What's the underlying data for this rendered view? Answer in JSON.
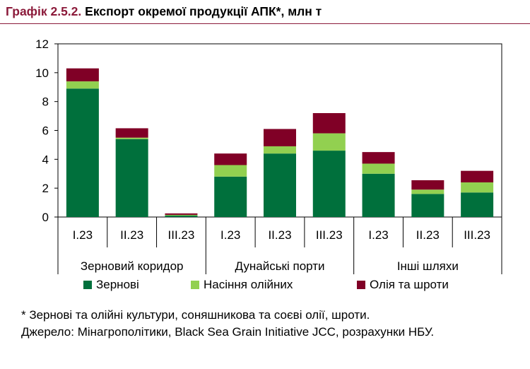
{
  "header": {
    "prefix": "Графік 2.5.2.",
    "title": "Експорт окремої продукції АПК*, млн т"
  },
  "colors": {
    "grain": "#00703c",
    "oilseeds": "#92d050",
    "oil_meal": "#800026",
    "accent": "#8b1a3a"
  },
  "chart_data": {
    "type": "bar",
    "stacked": true,
    "categories": [
      "I.23",
      "II.23",
      "III.23",
      "I.23",
      "II.23",
      "III.23",
      "I.23",
      "II.23",
      "III.23"
    ],
    "groups": [
      {
        "label": "Зерновий коридор",
        "start": 0,
        "count": 3
      },
      {
        "label": "Дунайські порти",
        "start": 3,
        "count": 3
      },
      {
        "label": "Інші шляхи",
        "start": 6,
        "count": 3
      }
    ],
    "series": [
      {
        "name": "Зернові",
        "color": "#00703c",
        "values": [
          8.9,
          5.4,
          0.1,
          2.8,
          4.4,
          4.6,
          3.0,
          1.6,
          1.7
        ]
      },
      {
        "name": "Насіння олійних",
        "color": "#92d050",
        "values": [
          0.5,
          0.1,
          0.05,
          0.8,
          0.5,
          1.2,
          0.7,
          0.3,
          0.7
        ]
      },
      {
        "name": "Олія та шроти",
        "color": "#800026",
        "values": [
          0.9,
          0.65,
          0.1,
          0.8,
          1.2,
          1.4,
          0.8,
          0.65,
          0.8
        ]
      }
    ],
    "ylim": [
      0,
      12
    ],
    "yticks": [
      "0",
      "2",
      "4",
      "6",
      "8",
      "10",
      "12"
    ],
    "grid": false,
    "legend_position": "bottom"
  },
  "footnote": {
    "note": "* Зернові та олійні культури, соняшникова та соєві олії, шроти.",
    "source": "Джерело: Мінагрополітики, Black Sea Grain Initiative JCC, розрахунки НБУ."
  }
}
